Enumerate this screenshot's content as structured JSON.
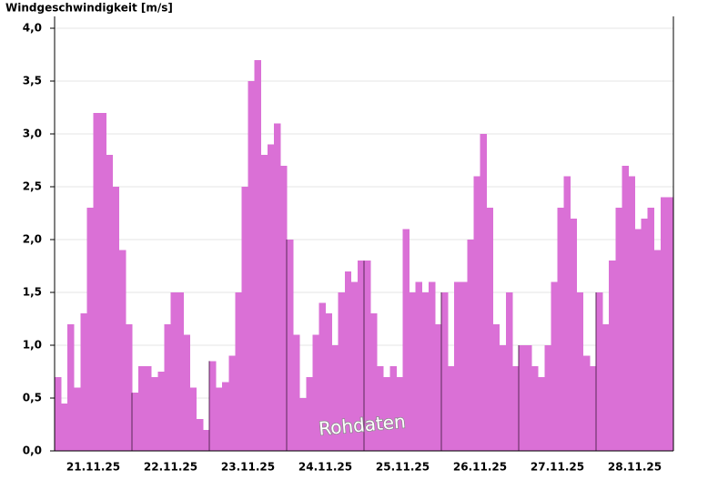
{
  "chart_data": {
    "type": "step-area",
    "title": "Windgeschwindigkeit [m/s]",
    "annotation": "Rohdaten",
    "color": "#da70d6",
    "x": [
      0,
      2,
      4,
      6,
      8,
      10,
      12,
      14,
      16,
      18,
      20,
      22,
      24,
      26,
      28,
      30,
      32,
      34,
      36,
      38,
      40,
      42,
      44,
      46,
      48,
      50,
      52,
      54,
      56,
      58,
      60,
      62,
      64,
      66,
      68,
      70,
      72,
      74,
      76,
      78,
      80,
      82,
      84,
      86,
      88,
      90,
      92,
      94,
      96,
      98,
      100,
      102,
      104,
      106,
      108,
      110,
      112,
      114,
      116,
      118,
      120,
      122,
      124,
      126,
      128,
      130,
      132,
      134,
      136,
      138,
      140,
      142,
      144,
      146,
      148,
      150,
      152,
      154,
      156,
      158,
      160,
      162,
      164,
      166,
      168,
      170,
      172,
      174,
      176,
      178,
      180,
      182,
      184,
      186,
      188,
      190
    ],
    "values": [
      0.7,
      0.45,
      1.2,
      0.6,
      1.3,
      2.3,
      3.2,
      3.2,
      2.8,
      2.5,
      1.9,
      1.2,
      0.55,
      0.8,
      0.8,
      0.7,
      0.75,
      1.2,
      1.5,
      1.5,
      1.1,
      0.6,
      0.3,
      0.2,
      0.85,
      0.6,
      0.65,
      0.9,
      1.5,
      2.5,
      3.5,
      3.7,
      2.8,
      2.9,
      3.1,
      2.7,
      2.0,
      1.1,
      0.5,
      0.7,
      1.1,
      1.4,
      1.3,
      1.0,
      1.5,
      1.7,
      1.6,
      1.8,
      1.8,
      1.3,
      0.8,
      0.7,
      0.8,
      0.7,
      2.1,
      1.5,
      1.6,
      1.5,
      1.6,
      1.2,
      1.5,
      0.8,
      1.6,
      1.6,
      2.0,
      2.6,
      3.0,
      2.3,
      1.2,
      1.0,
      1.5,
      0.8,
      1.0,
      1.0,
      0.8,
      0.7,
      1.0,
      1.6,
      2.3,
      2.6,
      2.2,
      1.5,
      0.9,
      0.8,
      1.5,
      1.2,
      1.8,
      2.3,
      2.7,
      2.6,
      2.1,
      2.2,
      2.3,
      1.9,
      2.4,
      2.4
    ],
    "xlim": [
      0,
      192
    ],
    "xticks": [
      {
        "value": 12,
        "label": "21.11.25"
      },
      {
        "value": 36,
        "label": "22.11.25"
      },
      {
        "value": 60,
        "label": "23.11.25"
      },
      {
        "value": 84,
        "label": "24.11.25"
      },
      {
        "value": 108,
        "label": "25.11.25"
      },
      {
        "value": 132,
        "label": "26.11.25"
      },
      {
        "value": 156,
        "label": "27.11.25"
      },
      {
        "value": 180,
        "label": "28.11.25"
      }
    ],
    "xgrid": [
      24,
      48,
      72,
      96,
      120,
      144,
      168
    ],
    "ylim": [
      0,
      4
    ],
    "yticks": [
      {
        "value": 0,
        "label": "0,0"
      },
      {
        "value": 0.5,
        "label": "0,5"
      },
      {
        "value": 1,
        "label": "1,0"
      },
      {
        "value": 1.5,
        "label": "1,5"
      },
      {
        "value": 2,
        "label": "2,0"
      },
      {
        "value": 2.5,
        "label": "2,5"
      },
      {
        "value": 3,
        "label": "3,0"
      },
      {
        "value": 3.5,
        "label": "3,5"
      },
      {
        "value": 4,
        "label": "4,0"
      }
    ],
    "grid": true
  }
}
